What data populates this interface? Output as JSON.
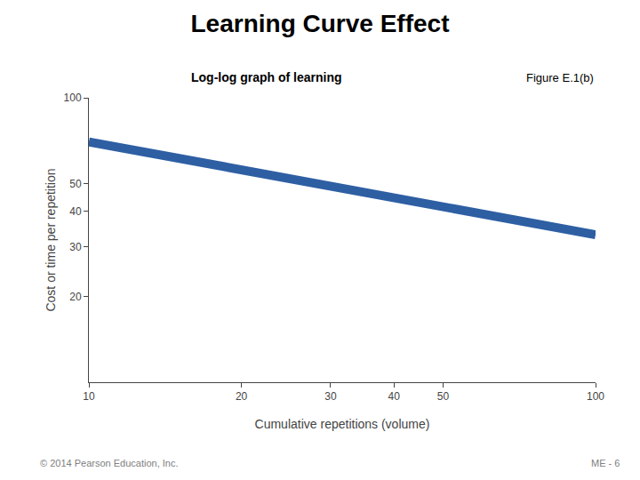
{
  "chart_data": {
    "type": "line",
    "title": "Learning Curve Effect",
    "subtitle": "Log-log graph of learning",
    "xlabel": "Cumulative repetitions (volume)",
    "ylabel": "Cost or time per repetition",
    "annotations": [
      "Figure E.1(b)",
      "© 2014 Pearson Education, Inc.",
      "ME - 6"
    ],
    "x": [
      10,
      100
    ],
    "values": [
      70,
      33
    ],
    "color": "#2E5FA3",
    "xlim": [
      10,
      100
    ],
    "ylim": [
      10,
      100
    ],
    "xticks": [
      10,
      20,
      30,
      40,
      50,
      100
    ],
    "yticks": [
      20,
      30,
      40,
      50,
      100
    ],
    "log": true,
    "grid": false
  }
}
